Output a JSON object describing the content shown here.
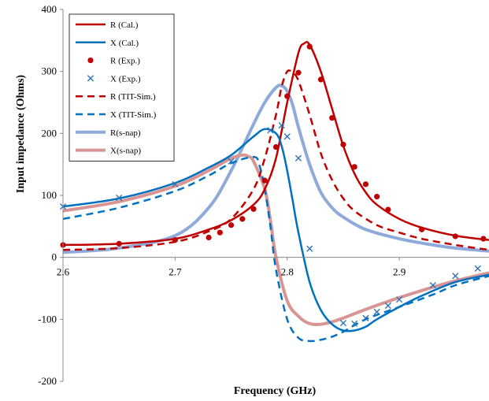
{
  "chart_data": {
    "type": "line",
    "title": "",
    "xlabel": "Frequency (GHz)",
    "ylabel": "Input impedance (Ohms)",
    "xlim": [
      2.6,
      2.98
    ],
    "ylim": [
      -200,
      400
    ],
    "x_ticks": [
      "2.6",
      "2.7",
      "2.8",
      "2.9"
    ],
    "y_ticks": [
      "400",
      "300",
      "200",
      "100",
      "0",
      "-100",
      "-200"
    ],
    "grid": false,
    "legend_position": "top-left",
    "series": [
      {
        "name": "R (Cal.)",
        "color": "#c00000",
        "style": "solid",
        "marker": "none",
        "x": [
          2.6,
          2.65,
          2.7,
          2.73,
          2.75,
          2.77,
          2.78,
          2.79,
          2.8,
          2.81,
          2.815,
          2.82,
          2.83,
          2.84,
          2.85,
          2.86,
          2.87,
          2.88,
          2.9,
          2.92,
          2.95,
          2.98
        ],
        "y": [
          20,
          22,
          30,
          45,
          60,
          85,
          110,
          160,
          250,
          330,
          345,
          343,
          300,
          240,
          180,
          135,
          105,
          85,
          62,
          48,
          35,
          28
        ]
      },
      {
        "name": "X (Cal.)",
        "color": "#0070c0",
        "style": "solid",
        "marker": "none",
        "x": [
          2.6,
          2.65,
          2.7,
          2.73,
          2.75,
          2.77,
          2.78,
          2.79,
          2.795,
          2.8,
          2.805,
          2.81,
          2.82,
          2.83,
          2.84,
          2.85,
          2.86,
          2.87,
          2.88,
          2.9,
          2.92,
          2.95,
          2.98
        ],
        "y": [
          82,
          95,
          120,
          145,
          165,
          195,
          207,
          200,
          180,
          140,
          90,
          40,
          -40,
          -85,
          -108,
          -118,
          -118,
          -112,
          -100,
          -80,
          -62,
          -40,
          -28
        ]
      },
      {
        "name": "R (Exp.)",
        "color": "#c00000",
        "style": "none",
        "marker": "circle",
        "x": [
          2.6,
          2.65,
          2.7,
          2.73,
          2.74,
          2.75,
          2.76,
          2.77,
          2.78,
          2.79,
          2.8,
          2.81,
          2.82,
          2.83,
          2.84,
          2.85,
          2.86,
          2.87,
          2.88,
          2.89,
          2.92,
          2.95,
          2.975
        ],
        "y": [
          20,
          22,
          28,
          32,
          40,
          52,
          62,
          78,
          124,
          178,
          260,
          298,
          340,
          287,
          225,
          182,
          146,
          118,
          98,
          77,
          45,
          34,
          30
        ]
      },
      {
        "name": "X (Exp.)",
        "color": "#2e75b6",
        "style": "none",
        "marker": "x",
        "x": [
          2.6,
          2.65,
          2.7,
          2.75,
          2.785,
          2.795,
          2.8,
          2.81,
          2.82,
          2.85,
          2.86,
          2.87,
          2.88,
          2.89,
          2.9,
          2.93,
          2.95,
          2.97
        ],
        "y": [
          82,
          96,
          118,
          155,
          205,
          213,
          195,
          160,
          14,
          -106,
          -107,
          -98,
          -88,
          -78,
          -68,
          -45,
          -30,
          -18
        ]
      },
      {
        "name": "R (TIT-Sim.)",
        "color": "#c00000",
        "style": "dashed",
        "marker": "none",
        "x": [
          2.6,
          2.65,
          2.7,
          2.73,
          2.75,
          2.77,
          2.78,
          2.79,
          2.795,
          2.8,
          2.805,
          2.81,
          2.82,
          2.83,
          2.84,
          2.85,
          2.86,
          2.88,
          2.9,
          2.92,
          2.95,
          2.98
        ],
        "y": [
          12,
          15,
          25,
          42,
          62,
          110,
          160,
          230,
          275,
          300,
          298,
          285,
          230,
          168,
          125,
          95,
          75,
          52,
          40,
          30,
          20,
          12
        ]
      },
      {
        "name": "X (TIT-Sim.)",
        "color": "#0070c0",
        "style": "dashed",
        "marker": "none",
        "x": [
          2.6,
          2.65,
          2.7,
          2.73,
          2.75,
          2.77,
          2.775,
          2.78,
          2.785,
          2.79,
          2.8,
          2.81,
          2.82,
          2.83,
          2.84,
          2.85,
          2.87,
          2.9,
          2.93,
          2.95,
          2.98
        ],
        "y": [
          62,
          80,
          107,
          132,
          152,
          162,
          150,
          110,
          50,
          -20,
          -100,
          -130,
          -135,
          -133,
          -128,
          -120,
          -100,
          -80,
          -60,
          -45,
          -30
        ]
      },
      {
        "name": "R(s-nap)",
        "color": "#8eaadb",
        "style": "solid",
        "marker": "none",
        "x": [
          2.6,
          2.65,
          2.7,
          2.73,
          2.75,
          2.77,
          2.78,
          2.79,
          2.795,
          2.8,
          2.805,
          2.81,
          2.82,
          2.83,
          2.84,
          2.85,
          2.87,
          2.9,
          2.93,
          2.95,
          2.98
        ],
        "y": [
          8,
          15,
          35,
          80,
          140,
          215,
          250,
          274,
          277,
          268,
          245,
          210,
          150,
          105,
          80,
          65,
          45,
          30,
          20,
          15,
          10
        ]
      },
      {
        "name": "X(s-nap)",
        "color": "#d99594",
        "style": "solid",
        "marker": "none",
        "x": [
          2.6,
          2.65,
          2.7,
          2.73,
          2.75,
          2.76,
          2.765,
          2.77,
          2.78,
          2.785,
          2.79,
          2.8,
          2.81,
          2.82,
          2.83,
          2.84,
          2.85,
          2.87,
          2.9,
          2.93,
          2.95,
          2.98
        ],
        "y": [
          75,
          90,
          115,
          140,
          160,
          165,
          163,
          155,
          110,
          60,
          0,
          -70,
          -95,
          -107,
          -108,
          -104,
          -98,
          -84,
          -65,
          -48,
          -38,
          -25
        ]
      }
    ]
  }
}
